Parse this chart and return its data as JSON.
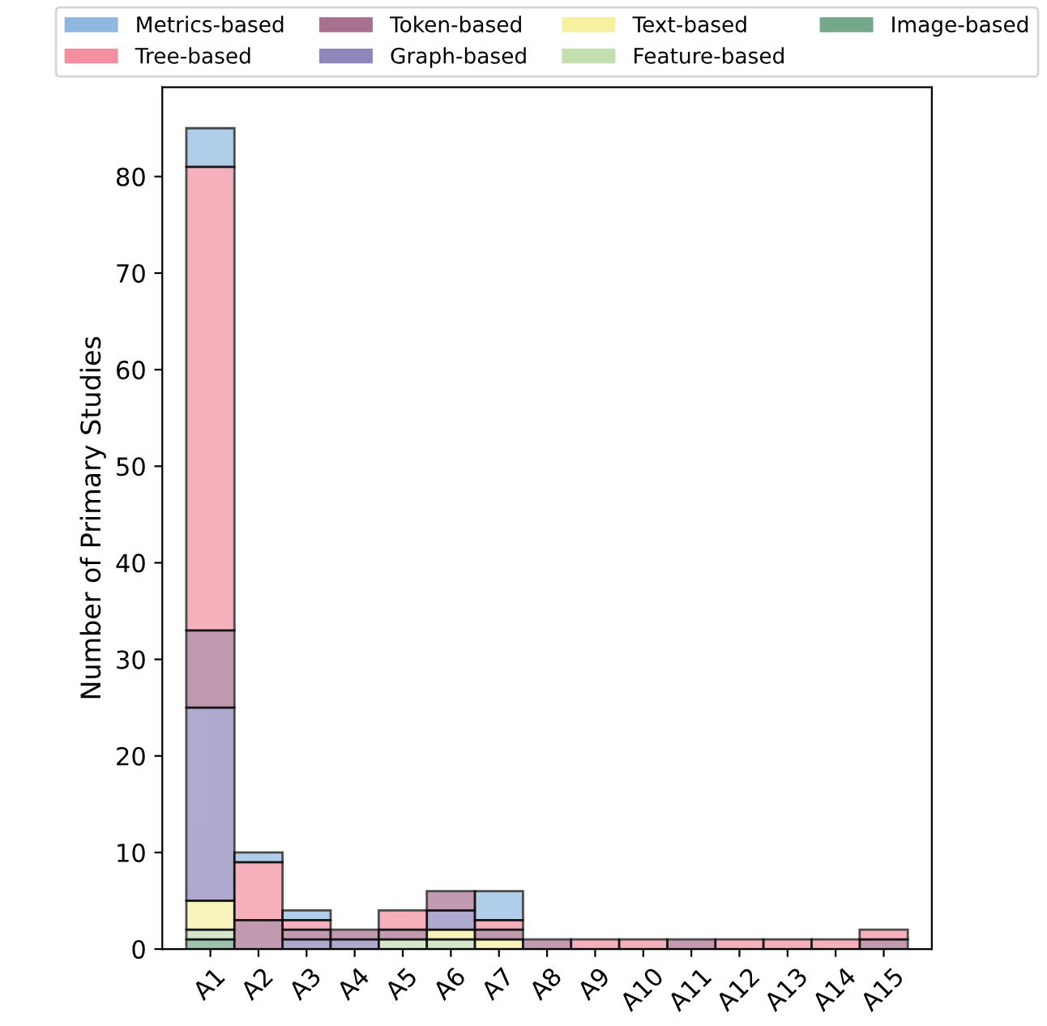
{
  "chart_data": {
    "type": "bar",
    "stacked": true,
    "ylabel": "Number of Primary Studies",
    "categories": [
      "A1",
      "A2",
      "A3",
      "A4",
      "A5",
      "A6",
      "A7",
      "A8",
      "A9",
      "A10",
      "A11",
      "A12",
      "A13",
      "A14",
      "A15"
    ],
    "series": [
      {
        "name": "Image-based",
        "color": "#75a88a",
        "values": [
          1,
          0,
          0,
          0,
          0,
          0,
          0,
          0,
          0,
          0,
          0,
          0,
          0,
          0,
          0
        ]
      },
      {
        "name": "Feature-based",
        "color": "#c3dfb0",
        "values": [
          1,
          0,
          0,
          0,
          1,
          1,
          0,
          0,
          0,
          0,
          0,
          0,
          0,
          0,
          0
        ]
      },
      {
        "name": "Text-based",
        "color": "#f6f0a0",
        "values": [
          3,
          0,
          0,
          0,
          0,
          1,
          1,
          0,
          0,
          0,
          0,
          0,
          0,
          0,
          0
        ]
      },
      {
        "name": "Graph-based",
        "color": "#8f86bc",
        "values": [
          20,
          0,
          1,
          1,
          0,
          2,
          0,
          0,
          0,
          0,
          0,
          0,
          0,
          0,
          0
        ]
      },
      {
        "name": "Token-based",
        "color": "#a8708f",
        "values": [
          8,
          3,
          1,
          1,
          1,
          2,
          1,
          1,
          0,
          0,
          1,
          0,
          0,
          0,
          1
        ]
      },
      {
        "name": "Tree-based",
        "color": "#f38fa0",
        "values": [
          48,
          6,
          1,
          0,
          2,
          0,
          1,
          0,
          1,
          1,
          0,
          1,
          1,
          1,
          1
        ]
      },
      {
        "name": "Metrics-based",
        "color": "#8fb8e0",
        "values": [
          4,
          1,
          1,
          0,
          0,
          0,
          3,
          0,
          0,
          0,
          0,
          0,
          0,
          0,
          0
        ]
      }
    ],
    "ylim": [
      0,
      89.25
    ],
    "yticks": [
      0,
      10,
      20,
      30,
      40,
      50,
      60,
      70,
      80
    ],
    "legend": "top",
    "grid": false
  }
}
